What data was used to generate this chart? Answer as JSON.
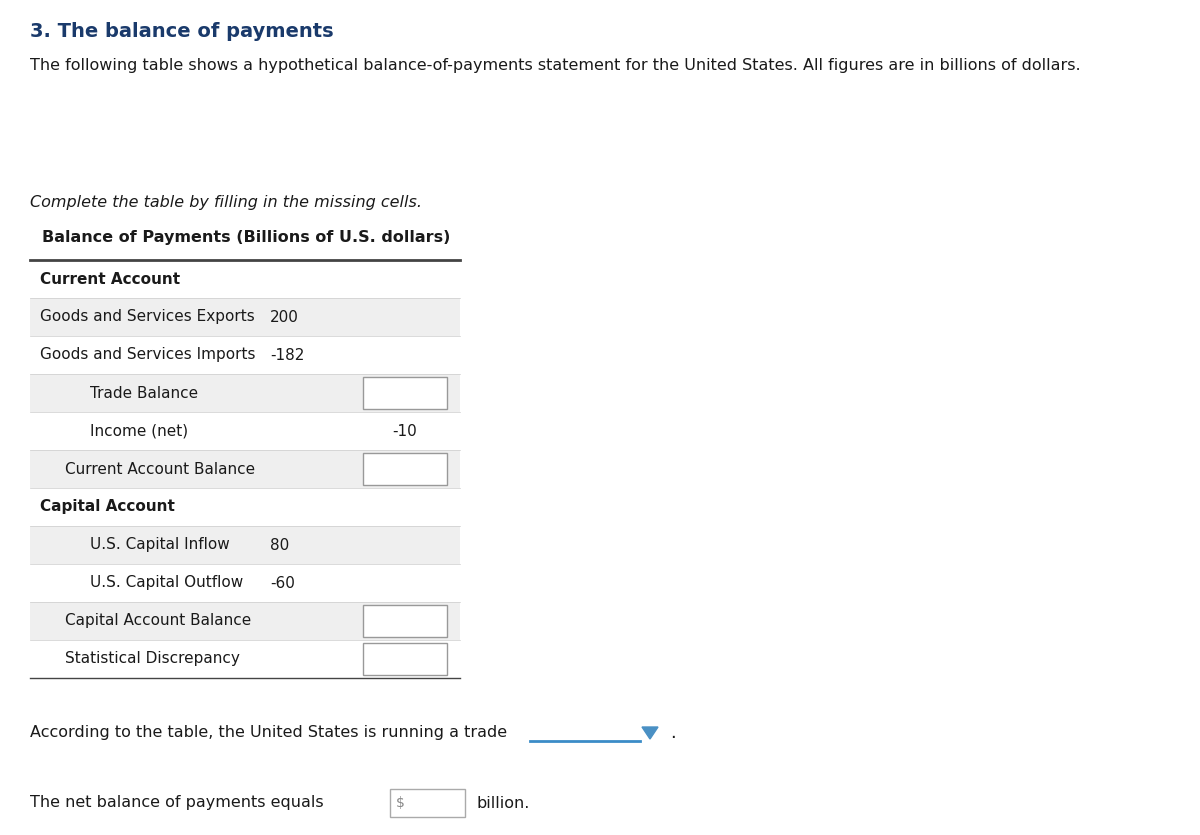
{
  "title": "3. The balance of payments",
  "intro_text": "The following table shows a hypothetical balance-of-payments statement for the United States. All figures are in billions of dollars.",
  "instruction_text": "Complete the table by filling in the missing cells.",
  "table_title": "Balance of Payments (Billions of U.S. dollars)",
  "footer_text1": "According to the table, the United States is running a trade",
  "footer_text2": "The net balance of payments equals",
  "footer_text2b": "billion.",
  "title_color": "#1a3a6b",
  "text_color": "#1a1a1a",
  "light_row_bg": "#efefef",
  "white_row_bg": "#ffffff",
  "box_border": "#aaaaaa",
  "table_border_color": "#444444",
  "dropdown_line_color": "#3b8cc7",
  "dropdown_arrow_color": "#4a90c4"
}
